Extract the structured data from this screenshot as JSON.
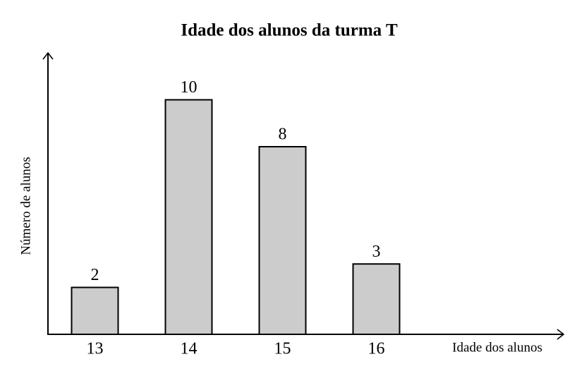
{
  "chart_data": {
    "type": "bar",
    "title": "Idade dos alunos da turma T",
    "x_label": "Idade dos alunos",
    "y_label": "Número de alunos",
    "categories": [
      "13",
      "14",
      "15",
      "16"
    ],
    "values": [
      2,
      10,
      8,
      3
    ],
    "color": "#cccccc",
    "ylim": [
      0,
      12
    ]
  }
}
